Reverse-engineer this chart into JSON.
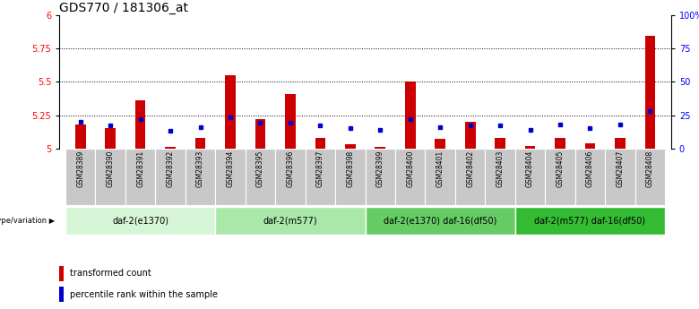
{
  "title": "GDS770 / 181306_at",
  "samples": [
    "GSM28389",
    "GSM28390",
    "GSM28391",
    "GSM28392",
    "GSM28393",
    "GSM28394",
    "GSM28395",
    "GSM28396",
    "GSM28397",
    "GSM28398",
    "GSM28399",
    "GSM28400",
    "GSM28401",
    "GSM28402",
    "GSM28403",
    "GSM28404",
    "GSM28405",
    "GSM28406",
    "GSM28407",
    "GSM28408"
  ],
  "red_values": [
    5.18,
    5.15,
    5.36,
    5.01,
    5.08,
    5.55,
    5.22,
    5.41,
    5.08,
    5.03,
    5.01,
    5.5,
    5.07,
    5.2,
    5.08,
    5.02,
    5.08,
    5.04,
    5.08,
    5.85
  ],
  "blue_pct": [
    20,
    17,
    22,
    13,
    16,
    23,
    19,
    19,
    17,
    15,
    14,
    22,
    16,
    17,
    17,
    14,
    18,
    15,
    18,
    28
  ],
  "ylim_left": [
    5.0,
    6.0
  ],
  "ylim_right": [
    0,
    100
  ],
  "yticks_left": [
    5.0,
    5.25,
    5.5,
    5.75,
    6.0
  ],
  "yticks_left_labels": [
    "5",
    "5.25",
    "5.5",
    "5.75",
    "6"
  ],
  "yticks_right": [
    0,
    25,
    50,
    75,
    100
  ],
  "yticks_right_labels": [
    "0",
    "25",
    "50",
    "75",
    "100%"
  ],
  "groups": [
    {
      "label": "daf-2(e1370)",
      "start": 0,
      "end": 5
    },
    {
      "label": "daf-2(m577)",
      "start": 5,
      "end": 10
    },
    {
      "label": "daf-2(e1370) daf-16(df50)",
      "start": 10,
      "end": 15
    },
    {
      "label": "daf-2(m577) daf-16(df50)",
      "start": 15,
      "end": 20
    }
  ],
  "group_colors": [
    "#d6f5d6",
    "#aae8aa",
    "#66cc66",
    "#33bb33"
  ],
  "bar_color_red": "#cc0000",
  "bar_color_blue": "#0000cc",
  "bar_width": 0.35,
  "genotype_label": "genotype/variation",
  "legend_red": "transformed count",
  "legend_blue": "percentile rank within the sample",
  "title_fontsize": 10,
  "tick_fontsize": 7,
  "sample_fontsize": 5.5,
  "group_fontsize": 7,
  "legend_fontsize": 7
}
